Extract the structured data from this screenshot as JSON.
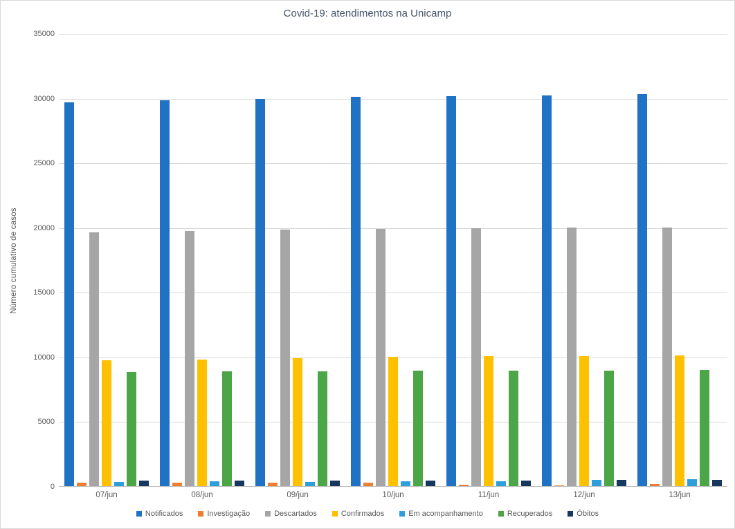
{
  "chart_data": {
    "type": "bar",
    "title": "Covid-19: atendimentos na Unicamp",
    "xlabel": "",
    "ylabel": "Número  cumulativo de casos",
    "categories": [
      "07/jun",
      "08/jun",
      "09/jun",
      "10/jun",
      "11/jun",
      "12/jun",
      "13/jun"
    ],
    "series": [
      {
        "name": "Notificados",
        "color": "#1f72c4",
        "values": [
          29700,
          29860,
          30000,
          30150,
          30200,
          30230,
          30350
        ]
      },
      {
        "name": "Investigação",
        "color": "#ed7d31",
        "values": [
          300,
          300,
          320,
          300,
          170,
          110,
          210
        ]
      },
      {
        "name": "Descartados",
        "color": "#a6a6a6",
        "values": [
          19650,
          19780,
          19890,
          19910,
          20000,
          20060,
          20060
        ]
      },
      {
        "name": "Confirmados",
        "color": "#ffc000",
        "values": [
          9770,
          9830,
          9940,
          10030,
          10100,
          10100,
          10140
        ]
      },
      {
        "name": "Em acompanhamento",
        "color": "#2e9fda",
        "values": [
          380,
          410,
          390,
          430,
          450,
          550,
          570
        ]
      },
      {
        "name": "Recuperados",
        "color": "#4ca546",
        "values": [
          8880,
          8930,
          8950,
          8980,
          9000,
          9000,
          9010
        ]
      },
      {
        "name": "Óbitos",
        "color": "#17375e",
        "values": [
          490,
          490,
          500,
          500,
          500,
          510,
          510
        ]
      }
    ],
    "ylim": [
      0,
      35000
    ],
    "ytick_step": 5000,
    "yticks": [
      "0",
      "5000",
      "10000",
      "15000",
      "20000",
      "25000",
      "30000",
      "35000"
    ],
    "grid": true,
    "legend_position": "bottom"
  },
  "colors": {
    "title_text": "#44546a",
    "axis_text": "#595959",
    "gridline": "#d9d9d9",
    "axis_line": "#bfbfbf",
    "background": "#ffffff"
  }
}
